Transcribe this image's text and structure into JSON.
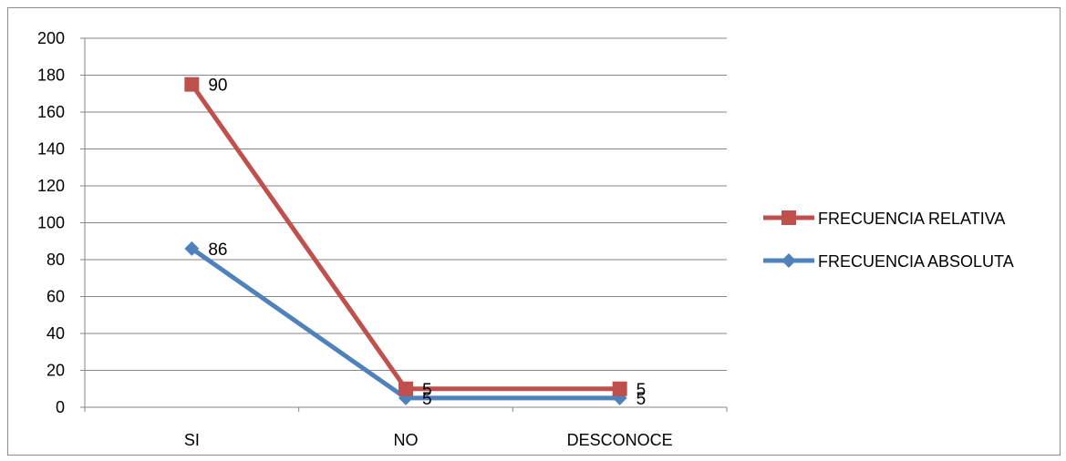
{
  "chart_data": {
    "type": "line",
    "categories": [
      "SI",
      "NO",
      "DESCONOCE"
    ],
    "ylim": [
      0,
      200
    ],
    "y_ticks": [
      "0",
      "20",
      "40",
      "60",
      "80",
      "100",
      "120",
      "140",
      "160",
      "180",
      "200"
    ],
    "grid": true,
    "legend_position": "right",
    "series": [
      {
        "name": "FRECUENCIA RELATIVA",
        "values": [
          175,
          10,
          10
        ],
        "labels": [
          "90",
          "5",
          "5"
        ],
        "color": "#c0504d",
        "marker": "square"
      },
      {
        "name": "FRECUENCIA ABSOLUTA",
        "values": [
          86,
          5,
          5
        ],
        "labels": [
          "86",
          "5",
          "5"
        ],
        "color": "#4f81bd",
        "marker": "diamond"
      }
    ]
  }
}
